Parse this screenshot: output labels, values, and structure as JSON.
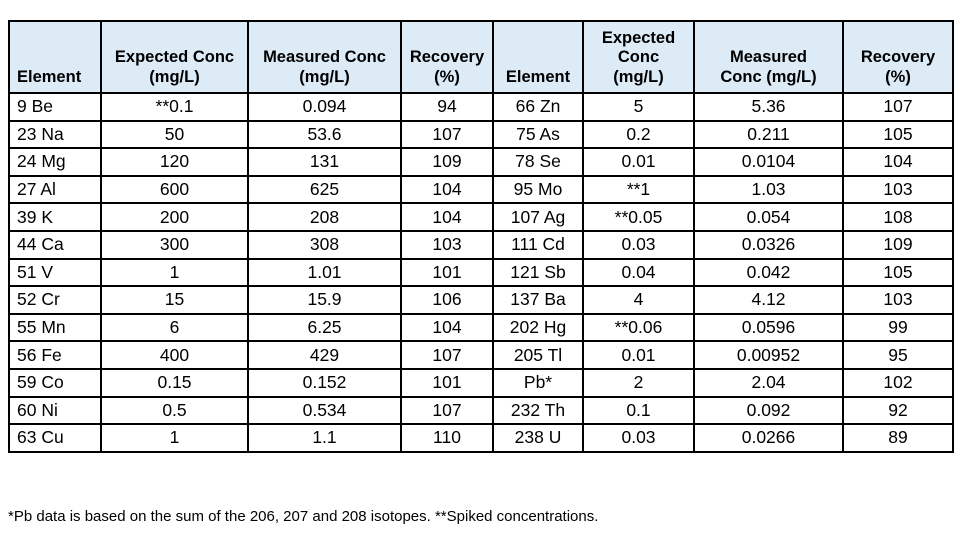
{
  "colors": {
    "header_bg": "#DDEBF7",
    "border": "#000000",
    "text": "#000000",
    "page_bg": "#FFFFFF"
  },
  "header": {
    "left": {
      "element": [
        "Element"
      ],
      "expected_conc": [
        "Expected Conc",
        "(mg/L)"
      ],
      "measured_conc": [
        "Measured Conc",
        "(mg/L)"
      ],
      "recovery": [
        "Recovery",
        "(%)"
      ]
    },
    "right": {
      "element": [
        "Element"
      ],
      "expected_conc": [
        "Expected",
        "Conc",
        "(mg/L)"
      ],
      "measured_conc": [
        "Measured",
        "Conc (mg/L)"
      ],
      "recovery": [
        "Recovery",
        "(%)"
      ]
    }
  },
  "rows": [
    {
      "left": [
        "9 Be",
        "**0.1",
        "0.094",
        "94"
      ],
      "right": [
        "66 Zn",
        "5",
        "5.36",
        "107"
      ]
    },
    {
      "left": [
        "23 Na",
        "50",
        "53.6",
        "107"
      ],
      "right": [
        "75 As",
        "0.2",
        "0.211",
        "105"
      ]
    },
    {
      "left": [
        "24 Mg",
        "120",
        "131",
        "109"
      ],
      "right": [
        "78 Se",
        "0.01",
        "0.0104",
        "104"
      ]
    },
    {
      "left": [
        "27 Al",
        "600",
        "625",
        "104"
      ],
      "right": [
        "95 Mo",
        "**1",
        "1.03",
        "103"
      ]
    },
    {
      "left": [
        "39 K",
        "200",
        "208",
        "104"
      ],
      "right": [
        "107 Ag",
        "**0.05",
        "0.054",
        "108"
      ]
    },
    {
      "left": [
        "44 Ca",
        "300",
        "308",
        "103"
      ],
      "right": [
        "111 Cd",
        "0.03",
        "0.0326",
        "109"
      ]
    },
    {
      "left": [
        "51 V",
        "1",
        "1.01",
        "101"
      ],
      "right": [
        "121 Sb",
        "0.04",
        "0.042",
        "105"
      ]
    },
    {
      "left": [
        "52 Cr",
        "15",
        "15.9",
        "106"
      ],
      "right": [
        "137 Ba",
        "4",
        "4.12",
        "103"
      ]
    },
    {
      "left": [
        "55 Mn",
        "6",
        "6.25",
        "104"
      ],
      "right": [
        "202 Hg",
        "**0.06",
        "0.0596",
        "99"
      ]
    },
    {
      "left": [
        "56 Fe",
        "400",
        "429",
        "107"
      ],
      "right": [
        "205 Tl",
        "0.01",
        "0.00952",
        "95"
      ]
    },
    {
      "left": [
        "59 Co",
        "0.15",
        "0.152",
        "101"
      ],
      "right": [
        "Pb*",
        "2",
        "2.04",
        "102"
      ]
    },
    {
      "left": [
        "60 Ni",
        "0.5",
        "0.534",
        "107"
      ],
      "right": [
        "232 Th",
        "0.1",
        "0.092",
        "92"
      ]
    },
    {
      "left": [
        "63 Cu",
        "1",
        "1.1",
        "110"
      ],
      "right": [
        "238 U",
        "0.03",
        "0.0266",
        "89"
      ]
    }
  ],
  "footnote": "*Pb data is based on the sum of the 206, 207 and 208 isotopes. **Spiked concentrations."
}
